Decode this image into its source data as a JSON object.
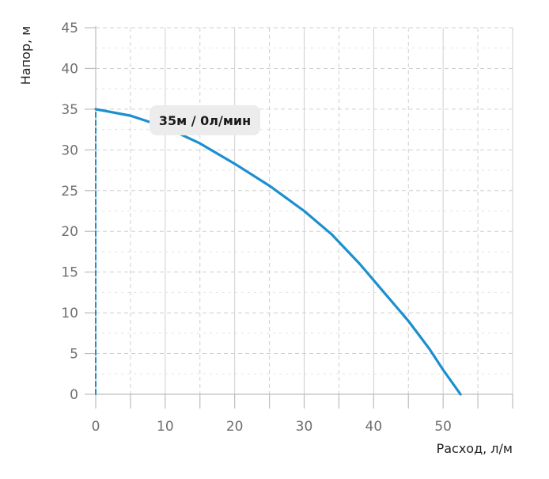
{
  "colors": {
    "curve": "#1c8fd0",
    "grid": "#cfcfcf",
    "axis": "#bdbdbd",
    "tooltip_bg": "#ececec"
  },
  "chart_data": {
    "type": "line",
    "title": "",
    "xlabel": "Расход, л/м",
    "ylabel": "Напор, м",
    "xlim": [
      0,
      60
    ],
    "ylim": [
      0,
      45
    ],
    "x_ticks": [
      0,
      10,
      20,
      30,
      40,
      50
    ],
    "y_ticks": [
      0,
      5,
      10,
      15,
      20,
      25,
      30,
      35,
      40,
      45
    ],
    "grid": "dashed",
    "series": [
      {
        "style": "solid",
        "x": [
          0,
          5,
          10,
          15,
          20,
          25,
          30,
          34,
          38,
          42,
          45,
          48,
          50,
          52,
          52.5
        ],
        "y": [
          35,
          34.2,
          32.8,
          30.8,
          28.3,
          25.6,
          22.5,
          19.6,
          16,
          12,
          9,
          5.6,
          3,
          0.6,
          0
        ]
      },
      {
        "style": "dashed",
        "x": [
          0,
          0
        ],
        "y": [
          0,
          35
        ]
      }
    ],
    "annotation": {
      "text": "35м / 0л/мин",
      "x": 0,
      "y": 35
    }
  }
}
